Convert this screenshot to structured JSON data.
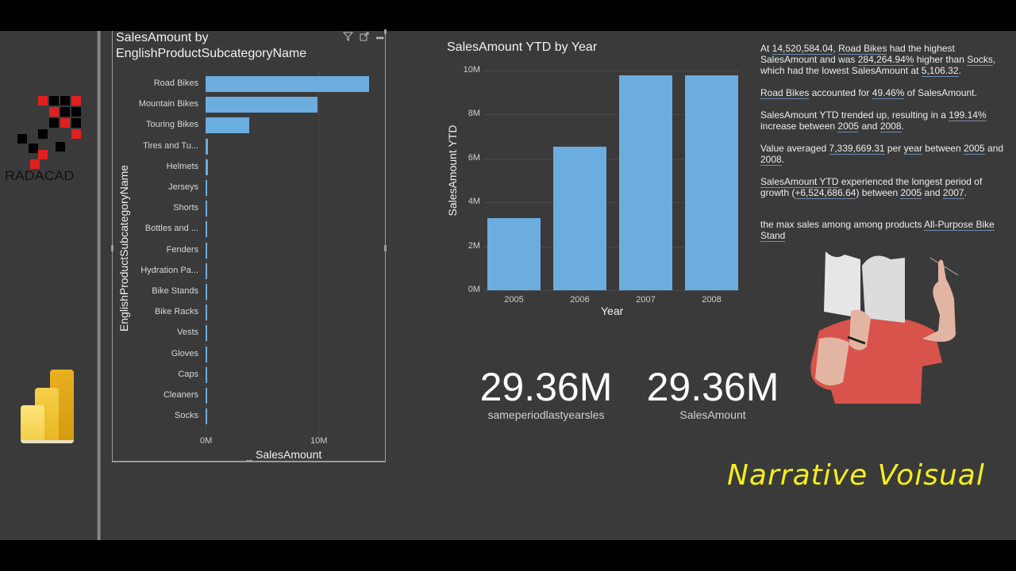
{
  "sidebar": {
    "logo_text": "RADACAD",
    "app_icon": "power-bi-icon"
  },
  "bar_visual": {
    "title_line1": "SalesAmount by",
    "title_line2": "EnglishProductSubcategoryName",
    "icons": [
      "filter-icon",
      "focus-mode-icon",
      "more-options-icon"
    ],
    "y_axis_label": "EnglishProductSubcategoryName",
    "x_axis_label": "SalesAmount",
    "x_ticks": [
      "0M",
      "10M"
    ],
    "categories": [
      "Road Bikes",
      "Mountain Bikes",
      "Touring Bikes",
      "Tires and Tu...",
      "Helmets",
      "Jerseys",
      "Shorts",
      "Bottles and ...",
      "Fenders",
      "Hydration Pa...",
      "Bike Stands",
      "Bike Racks",
      "Vests",
      "Gloves",
      "Caps",
      "Cleaners",
      "Socks"
    ]
  },
  "column_visual": {
    "title": "SalesAmount YTD by Year",
    "y_axis_label": "SalesAmount YTD",
    "x_axis_label": "Year",
    "y_ticks": [
      "10M",
      "8M",
      "6M",
      "4M",
      "2M",
      "0M"
    ],
    "x_ticks": [
      "2005",
      "2006",
      "2007",
      "2008"
    ]
  },
  "chart_data": [
    {
      "type": "bar",
      "orientation": "horizontal",
      "title": "SalesAmount by EnglishProductSubcategoryName",
      "xlabel": "SalesAmount",
      "ylabel": "EnglishProductSubcategoryName",
      "categories": [
        "Road Bikes",
        "Mountain Bikes",
        "Touring Bikes",
        "Tires and Tubes",
        "Helmets",
        "Jerseys",
        "Shorts",
        "Bottles and Cages",
        "Fenders",
        "Hydration Packs",
        "Bike Stands",
        "Bike Racks",
        "Vests",
        "Gloves",
        "Caps",
        "Cleaners",
        "Socks"
      ],
      "values": [
        14520584.04,
        9950000,
        3870000,
        245000,
        225000,
        165000,
        72000,
        56000,
        46000,
        40000,
        39000,
        39000,
        35000,
        35000,
        20000,
        7000,
        5106.32
      ],
      "xlim": [
        0,
        14600000
      ],
      "x_ticks": [
        "0M",
        "10M"
      ],
      "grid": true,
      "color": "#6cade0"
    },
    {
      "type": "bar",
      "title": "SalesAmount YTD by Year",
      "xlabel": "Year",
      "ylabel": "SalesAmount YTD",
      "categories": [
        "2005",
        "2006",
        "2007",
        "2008"
      ],
      "values": [
        3270000,
        6530000,
        9790000,
        9770000
      ],
      "ylim": [
        0,
        10000000
      ],
      "y_ticks": [
        "0M",
        "2M",
        "4M",
        "6M",
        "8M",
        "10M"
      ],
      "grid": true,
      "color": "#6cade0"
    }
  ],
  "narrative": {
    "p1": [
      {
        "t": "At ",
        "u": false
      },
      {
        "t": "14,520,584.04",
        "u": true
      },
      {
        "t": ", ",
        "u": false
      },
      {
        "t": "Road Bikes",
        "u": true
      },
      {
        "t": " had the highest SalesAmount and was ",
        "u": false
      },
      {
        "t": "284,264.94%",
        "u": true
      },
      {
        "t": " higher than ",
        "u": false
      },
      {
        "t": "Socks",
        "u": true
      },
      {
        "t": ", which had the lowest SalesAmount at ",
        "u": false
      },
      {
        "t": "5,106.32",
        "u": true
      },
      {
        "t": ".",
        "u": false
      }
    ],
    "p2": [
      {
        "t": "Road Bikes",
        "u": true
      },
      {
        "t": " accounted for ",
        "u": false
      },
      {
        "t": "49.46%",
        "u": true
      },
      {
        "t": " of SalesAmount.",
        "u": false
      }
    ],
    "p3": [
      {
        "t": "SalesAmount YTD trended up, resulting in a ",
        "u": false
      },
      {
        "t": "199.14%",
        "u": true
      },
      {
        "t": " increase between ",
        "u": false
      },
      {
        "t": "2005",
        "u": true
      },
      {
        "t": " and ",
        "u": false
      },
      {
        "t": "2008",
        "u": true
      },
      {
        "t": ".",
        "u": false
      }
    ],
    "p4": [
      {
        "t": "Value averaged ",
        "u": false
      },
      {
        "t": "7,339,669.31",
        "u": true
      },
      {
        "t": " per ",
        "u": false
      },
      {
        "t": "year",
        "u": true
      },
      {
        "t": " between ",
        "u": false
      },
      {
        "t": "2005",
        "u": true
      },
      {
        "t": " and ",
        "u": false
      },
      {
        "t": "2008",
        "u": true
      },
      {
        "t": ".",
        "u": false
      }
    ],
    "p5": [
      {
        "t": "SalesAmount YTD",
        "u": true
      },
      {
        "t": " experienced the longest period of growth (",
        "u": false
      },
      {
        "t": "+6,524,686.64",
        "u": true
      },
      {
        "t": ") between ",
        "u": false
      },
      {
        "t": "2005",
        "u": true
      },
      {
        "t": " and ",
        "u": false
      },
      {
        "t": "2007",
        "u": true
      },
      {
        "t": ".",
        "u": false
      }
    ],
    "p6": [
      {
        "t": "the max sales among among products ",
        "u": false
      },
      {
        "t": "All-Purpose Bike Stand",
        "u": true
      }
    ]
  },
  "cards": [
    {
      "value": "29.36M",
      "label": "sameperiodlastyearsles"
    },
    {
      "value": "29.36M",
      "label": "SalesAmount"
    }
  ],
  "overlay": {
    "caption": "Narrative Voisual"
  },
  "colors": {
    "background": "#3a3a3a",
    "bar": "#6cade0",
    "caption": "#f4ee1a",
    "logo_red": "#e02020"
  }
}
